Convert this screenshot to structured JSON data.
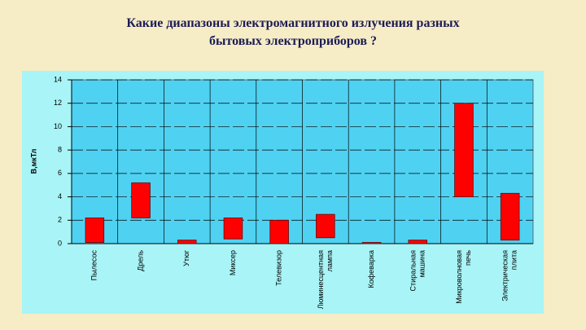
{
  "chart_data": {
    "type": "range-bar",
    "title": "Какие диапазоны электромагнитного излучения разных бытовых электроприборов ?",
    "y_label": "B,мкТл",
    "categories": [
      "Пылесос",
      "Дрель",
      "Утюг",
      "Миксер",
      "Телевизор",
      "Люминесцентная лампа",
      "Кофеварка",
      "Стиральная машина",
      "Микроволновая печь",
      "Электрическая плита"
    ],
    "low": [
      0.1,
      2.2,
      0,
      0.4,
      0,
      0.5,
      0,
      0,
      4.0,
      0.3
    ],
    "high": [
      2.2,
      5.2,
      0.3,
      2.2,
      2.0,
      2.5,
      0.1,
      0.3,
      12.0,
      4.3
    ],
    "color": "#ff0000",
    "ylim": [
      0,
      14
    ],
    "yticks": [
      0,
      2,
      4,
      6,
      8,
      10,
      12,
      14
    ],
    "grid": true
  }
}
